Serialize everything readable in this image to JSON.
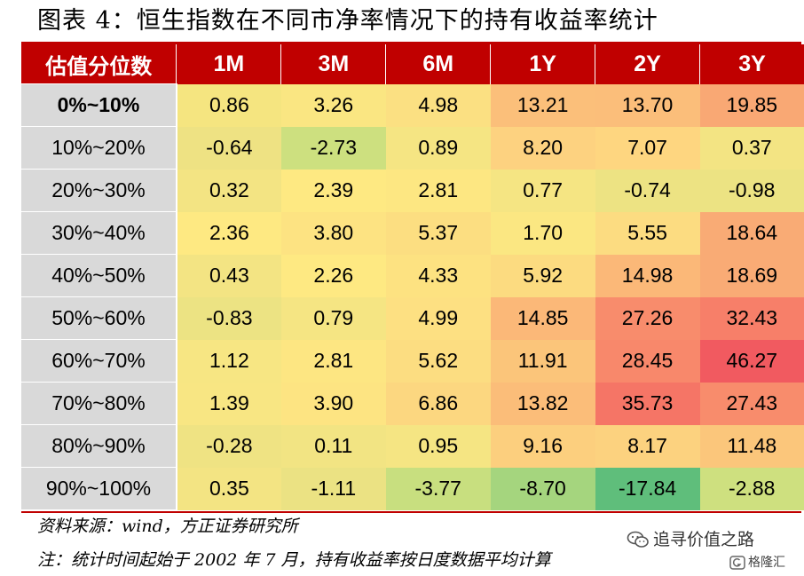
{
  "title": "图表 4：恒生指数在不同市净率情况下的持有收益率统计",
  "table": {
    "corner_header": "估值分位数",
    "columns": [
      "1M",
      "3M",
      "6M",
      "1Y",
      "2Y",
      "3Y"
    ],
    "rows": [
      {
        "label": "0%~10%",
        "values": [
          "0.86",
          "3.26",
          "4.98",
          "13.21",
          "13.70",
          "19.85"
        ],
        "colors": [
          "#f5e580",
          "#fae682",
          "#fbe082",
          "#fbbf7a",
          "#fbbe7a",
          "#f9a874"
        ]
      },
      {
        "label": "10%~20%",
        "values": [
          "-0.64",
          "-2.73",
          "0.89",
          "8.20",
          "7.07",
          "0.37"
        ],
        "colors": [
          "#eee283",
          "#cde07f",
          "#f5e583",
          "#fdd280",
          "#fed680",
          "#f3e483"
        ]
      },
      {
        "label": "20%~30%",
        "values": [
          "0.32",
          "2.39",
          "2.81",
          "0.77",
          "-0.74",
          "-0.98"
        ],
        "colors": [
          "#f3e483",
          "#fee982",
          "#fde782",
          "#f5e583",
          "#ede383",
          "#ece383"
        ]
      },
      {
        "label": "30%~40%",
        "values": [
          "2.36",
          "3.80",
          "5.37",
          "1.70",
          "5.55",
          "18.64"
        ],
        "colors": [
          "#fee982",
          "#fde382",
          "#fcde81",
          "#fbe782",
          "#fcdc81",
          "#f9ab75"
        ]
      },
      {
        "label": "40%~50%",
        "values": [
          "0.43",
          "2.26",
          "4.33",
          "5.92",
          "14.98",
          "18.69"
        ],
        "colors": [
          "#f3e483",
          "#fee982",
          "#fde281",
          "#fcdb80",
          "#fbb878",
          "#f9ab75"
        ]
      },
      {
        "label": "50%~60%",
        "values": [
          "-0.83",
          "0.79",
          "4.99",
          "14.85",
          "27.26",
          "32.43"
        ],
        "colors": [
          "#ece383",
          "#f5e583",
          "#fde082",
          "#fbb878",
          "#f88c6c",
          "#f77f69"
        ]
      },
      {
        "label": "60%~70%",
        "values": [
          "1.12",
          "2.81",
          "5.62",
          "11.91",
          "28.45",
          "46.27"
        ],
        "colors": [
          "#f7e683",
          "#fde682",
          "#fcdd81",
          "#fbc57a",
          "#f8886b",
          "#f15a60"
        ]
      },
      {
        "label": "70%~80%",
        "values": [
          "1.39",
          "3.90",
          "6.86",
          "13.82",
          "35.73",
          "27.43"
        ],
        "colors": [
          "#f8e683",
          "#fde482",
          "#fcd780",
          "#fbbd79",
          "#f57566",
          "#f88c6c"
        ]
      },
      {
        "label": "80%~90%",
        "values": [
          "-0.28",
          "0.11",
          "0.95",
          "9.16",
          "8.17",
          "11.48"
        ],
        "colors": [
          "#efe383",
          "#f2e483",
          "#f5e583",
          "#fccf7e",
          "#fcd27f",
          "#fbc67b"
        ]
      },
      {
        "label": "90%~100%",
        "values": [
          "0.35",
          "-1.11",
          "-3.77",
          "-8.70",
          "-17.84",
          "-2.88"
        ],
        "colors": [
          "#f3e483",
          "#ebe283",
          "#c8df7f",
          "#a5d57e",
          "#5fbe7b",
          "#cee07f"
        ]
      }
    ]
  },
  "source": "资料来源：wind，方正证券研究所",
  "note": "注：统计时间起始于 2002 年 7 月，持有收益率按日度数据平均计算",
  "watermark": {
    "account": "追寻价值之路",
    "platform": "格隆汇"
  },
  "colors": {
    "header_bg": "#c00000",
    "label_bg": "#d9d9d9",
    "accent_line": "#c00000"
  },
  "icons": [
    "wechat-icon",
    "gelonghui-logo-icon"
  ]
}
